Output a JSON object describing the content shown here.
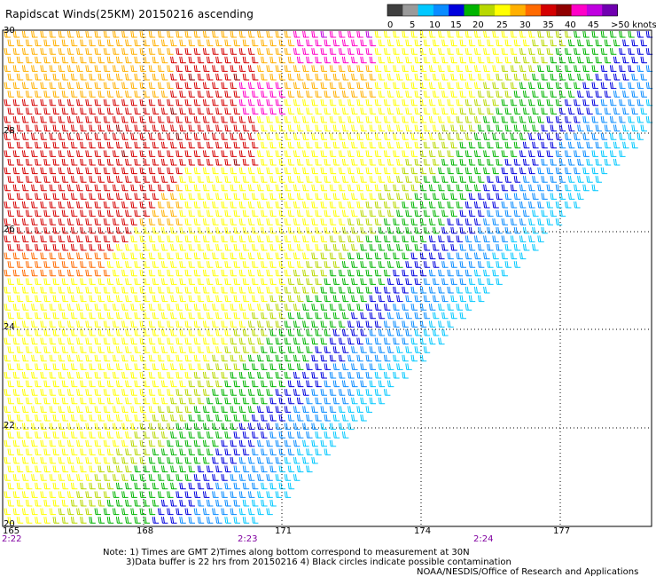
{
  "title": "Rapidscat Winds(25KM) 20150216 ascending",
  "colorbar": {
    "unit_label": ">50 knots",
    "ticks": [
      "0",
      "5",
      "10",
      "15",
      "20",
      "25",
      "30",
      "35",
      "40",
      "45"
    ],
    "colors": [
      "#3f3f3f",
      "#9a9a9a",
      "#00c8ff",
      "#0a8cff",
      "#0000dd",
      "#00b400",
      "#b8d800",
      "#ffff00",
      "#ffb000",
      "#ff6a00",
      "#d40000",
      "#900000",
      "#ff00c8",
      "#c000e0",
      "#7000b0"
    ]
  },
  "map": {
    "lat_labels": [
      "30",
      "28",
      "26",
      "24",
      "22",
      "20"
    ],
    "lon_labels": [
      "165",
      "168",
      "171",
      "174",
      "177"
    ],
    "time_labels": [
      "2:22",
      "2:23",
      "2:24"
    ],
    "time_color": "#8000a0"
  },
  "notes": {
    "line1": "Note: 1) Times are GMT 2)Times along bottom correspond to measurement at 30N",
    "line2": "3)Data buffer is 22 hrs from 20150216 4) Black circles indicate possible contamination",
    "line3": "NOAA/NESDIS/Office of Research and Applications"
  }
}
